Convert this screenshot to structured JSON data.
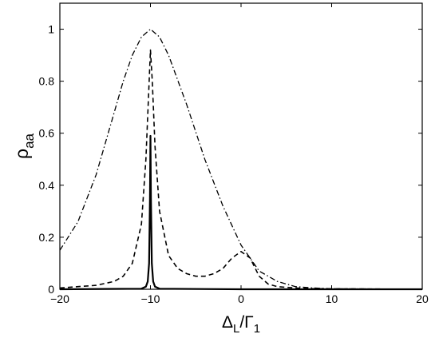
{
  "chart_data": {
    "type": "line",
    "xlabel": {
      "main": "Δ",
      "sub": "L",
      "mid": "/Γ",
      "sub2": "1"
    },
    "ylabel": {
      "main": "ρ",
      "sub": "aa"
    },
    "xlim": [
      -20,
      20
    ],
    "ylim": [
      0,
      1.1
    ],
    "xticks": [
      -20,
      -10,
      0,
      10,
      20
    ],
    "yticks": [
      0,
      0.2,
      0.4,
      0.6,
      0.8,
      1
    ],
    "xtick_labels": [
      "−20",
      "−10",
      "0",
      "10",
      "20"
    ],
    "ytick_labels": [
      "0",
      "0.2",
      "0.4",
      "0.6",
      "0.8",
      "1"
    ],
    "grid": false,
    "series": [
      {
        "style": "dash-dot",
        "color": "#000000",
        "x": [
          -20,
          -18,
          -16,
          -14,
          -13,
          -12,
          -11,
          -10,
          -9,
          -8,
          -6,
          -4,
          -2,
          0,
          2,
          4,
          6,
          8,
          10,
          20
        ],
        "y": [
          0.15,
          0.26,
          0.44,
          0.68,
          0.8,
          0.9,
          0.97,
          1.0,
          0.97,
          0.9,
          0.71,
          0.5,
          0.32,
          0.17,
          0.07,
          0.03,
          0.01,
          0.005,
          0.002,
          0.0
        ]
      },
      {
        "style": "dashed",
        "color": "#000000",
        "x": [
          -20,
          -18,
          -16,
          -14,
          -13,
          -12,
          -11,
          -10.5,
          -10.2,
          -10,
          -9.8,
          -9.5,
          -9,
          -8,
          -7,
          -6,
          -5,
          -4,
          -3,
          -2,
          -1,
          0,
          1,
          2,
          3,
          4,
          6,
          8,
          20
        ],
        "y": [
          0.005,
          0.01,
          0.015,
          0.03,
          0.05,
          0.1,
          0.25,
          0.5,
          0.75,
          0.92,
          0.8,
          0.55,
          0.3,
          0.13,
          0.08,
          0.06,
          0.05,
          0.05,
          0.06,
          0.08,
          0.12,
          0.145,
          0.12,
          0.05,
          0.02,
          0.01,
          0.005,
          0.002,
          0.0
        ]
      },
      {
        "style": "solid",
        "color": "#000000",
        "x": [
          -20,
          -11,
          -10.5,
          -10.3,
          -10.15,
          -10.05,
          -10,
          -9.95,
          -9.85,
          -9.7,
          -9.5,
          -9,
          0,
          20
        ],
        "y": [
          0.0,
          0.002,
          0.01,
          0.03,
          0.1,
          0.35,
          0.59,
          0.35,
          0.1,
          0.03,
          0.01,
          0.002,
          0.0,
          0.0
        ]
      }
    ]
  }
}
